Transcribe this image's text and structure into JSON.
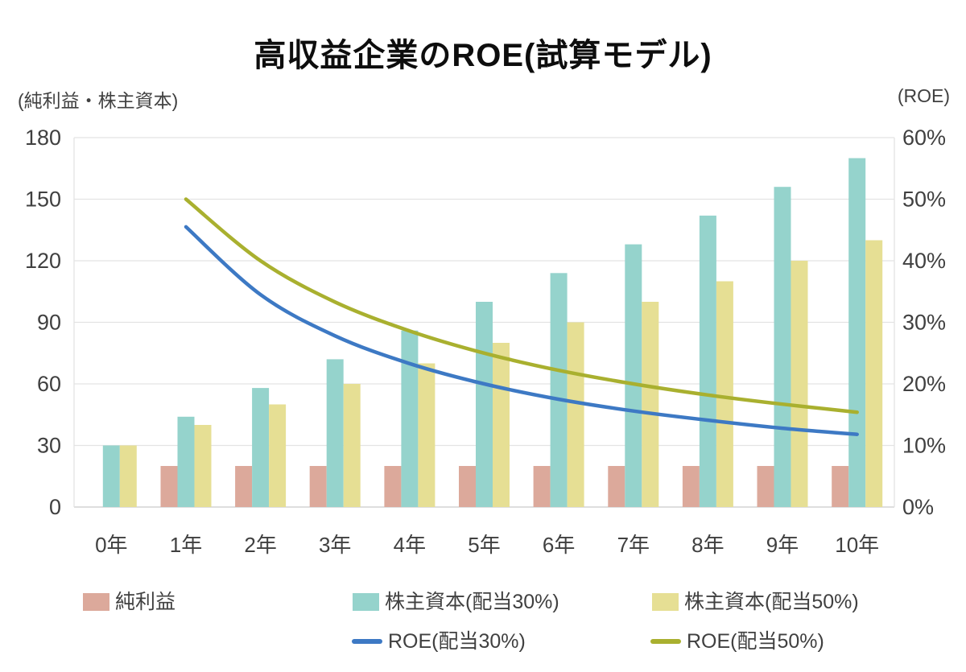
{
  "chart_data": {
    "type": "bar+line combo",
    "title": "高収益企業のROE(試算モデル)",
    "left_axis_unit": "(純利益・株主資本)",
    "right_axis_unit": "(ROE)",
    "categories": [
      "0年",
      "1年",
      "2年",
      "3年",
      "4年",
      "5年",
      "6年",
      "7年",
      "8年",
      "9年",
      "10年"
    ],
    "bar_series": [
      {
        "id": "net-profit",
        "name": "純利益",
        "axis": "left",
        "color": "#DCA99B",
        "values": [
          null,
          20,
          20,
          20,
          20,
          20,
          20,
          20,
          20,
          20,
          20
        ]
      },
      {
        "id": "equity-div30",
        "name": "株主資本(配当30%)",
        "axis": "left",
        "color": "#95D3CC",
        "values": [
          30,
          44,
          58,
          72,
          86,
          100,
          114,
          128,
          142,
          156,
          170
        ]
      },
      {
        "id": "equity-div50",
        "name": "株主資本(配当50%)",
        "axis": "left",
        "color": "#E6DF94",
        "values": [
          30,
          40,
          50,
          60,
          70,
          80,
          90,
          100,
          110,
          120,
          130
        ]
      }
    ],
    "line_series": [
      {
        "id": "roe-div30",
        "name": "ROE(配当30%)",
        "axis": "right",
        "color": "#3D79C4",
        "values_pct": [
          null,
          45.5,
          34.5,
          27.8,
          23.3,
          20.0,
          17.5,
          15.6,
          14.1,
          12.8,
          11.8
        ]
      },
      {
        "id": "roe-div50",
        "name": "ROE(配当50%)",
        "axis": "right",
        "color": "#A9B02F",
        "values_pct": [
          null,
          50.0,
          40.0,
          33.3,
          28.6,
          25.0,
          22.2,
          20.0,
          18.2,
          16.7,
          15.4
        ]
      }
    ],
    "left_axis": {
      "min": 0,
      "max": 180,
      "step": 30,
      "ticks": [
        "180",
        "150",
        "120",
        "90",
        "60",
        "30",
        "0"
      ]
    },
    "right_axis": {
      "min": 0,
      "max": 60,
      "step": 10,
      "ticks": [
        "60%",
        "50%",
        "40%",
        "30%",
        "20%",
        "10%",
        "0%"
      ]
    },
    "grid": "horizontal-only",
    "colors": {
      "gridline": "#E3E3E3",
      "baseline": "#C9C9C9",
      "tick_text": "#404040",
      "title_text": "#0D0D0D"
    },
    "legend_position": "bottom"
  }
}
